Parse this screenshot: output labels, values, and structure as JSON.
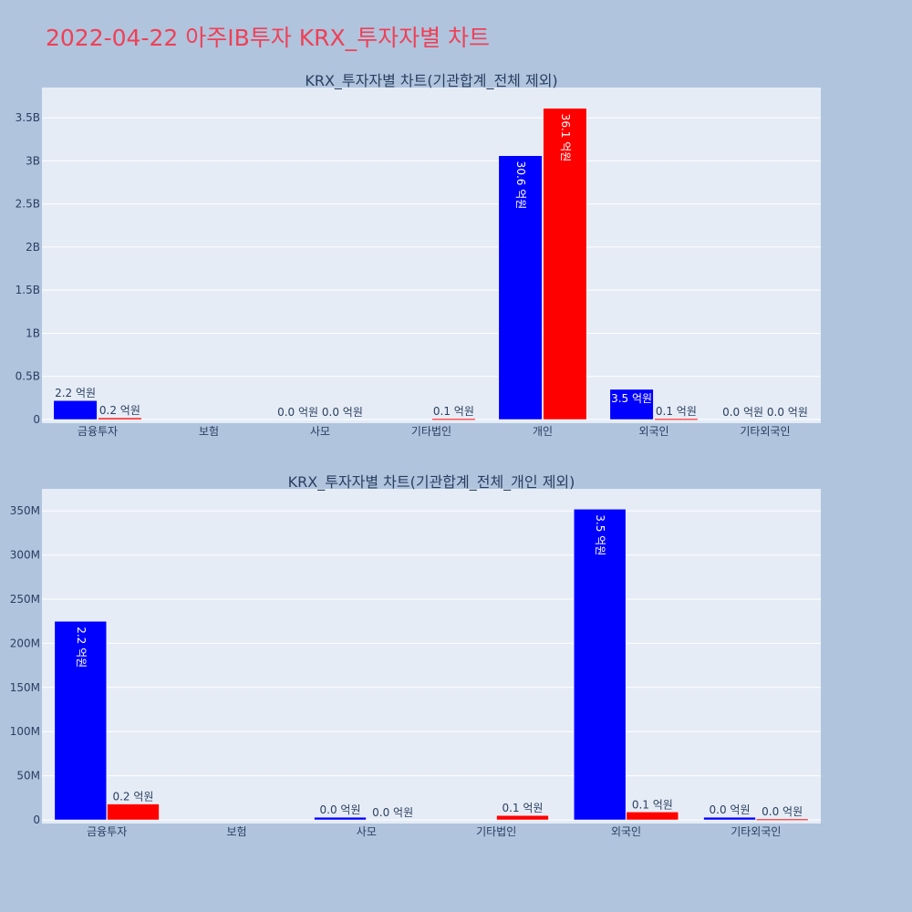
{
  "title": "2022-04-22 아주IB투자 KRX_투자자별 차트",
  "colors": {
    "buy": "#0000ff",
    "sell": "#ff0000",
    "plot_bg": "#e5ecf6",
    "page_bg": "#b0c4de",
    "title": "#ef4056",
    "text": "#2a3f5f"
  },
  "chart_data": [
    {
      "type": "bar",
      "title": "KRX_투자자별 차트(기관합계_전체 제외)",
      "categories": [
        "금융투자",
        "보험",
        "사모",
        "기타법인",
        "개인",
        "외국인",
        "기타외국인"
      ],
      "ylim": [
        0,
        3850000000
      ],
      "yticks": [
        0,
        500000000,
        1000000000,
        1500000000,
        2000000000,
        2500000000,
        3000000000,
        3500000000
      ],
      "ytick_labels": [
        "0",
        "0.5B",
        "1B",
        "1.5B",
        "2B",
        "2.5B",
        "3B",
        "3.5B"
      ],
      "grid": true,
      "series": [
        {
          "values": [
            220000000,
            0,
            0,
            0,
            3060000000,
            350000000,
            0
          ],
          "labels": [
            "2.2 억원",
            "",
            "0.0 억원",
            "",
            "30.6 억원",
            "3.5 억원",
            "0.0 억원"
          ]
        },
        {
          "values": [
            20000000,
            0,
            0,
            10000000,
            3610000000,
            10000000,
            0
          ],
          "labels": [
            "0.2 억원",
            "",
            "0.0 억원",
            "0.1 억원",
            "36.1 억원",
            "0.1 억원",
            "0.0 억원"
          ]
        }
      ]
    },
    {
      "type": "bar",
      "title": "KRX_투자자별 차트(기관합계_전체_개인 제외)",
      "categories": [
        "금융투자",
        "보험",
        "사모",
        "기타법인",
        "외국인",
        "기타외국인"
      ],
      "ylim": [
        0,
        375000000
      ],
      "yticks": [
        0,
        50000000,
        100000000,
        150000000,
        200000000,
        250000000,
        300000000,
        350000000
      ],
      "ytick_labels": [
        "0",
        "50M",
        "100M",
        "150M",
        "200M",
        "250M",
        "300M",
        "350M"
      ],
      "grid": true,
      "series": [
        {
          "values": [
            225000000,
            0,
            3000000,
            0,
            352000000,
            3000000
          ],
          "labels": [
            "2.2 억원",
            "",
            "0.0 억원",
            "",
            "3.5 억원",
            "0.0 억원"
          ]
        },
        {
          "values": [
            18000000,
            0,
            0,
            5000000,
            9000000,
            1000000
          ],
          "labels": [
            "0.2 억원",
            "",
            "0.0 억원",
            "0.1 억원",
            "0.1 억원",
            "0.0 억원"
          ]
        }
      ]
    }
  ]
}
